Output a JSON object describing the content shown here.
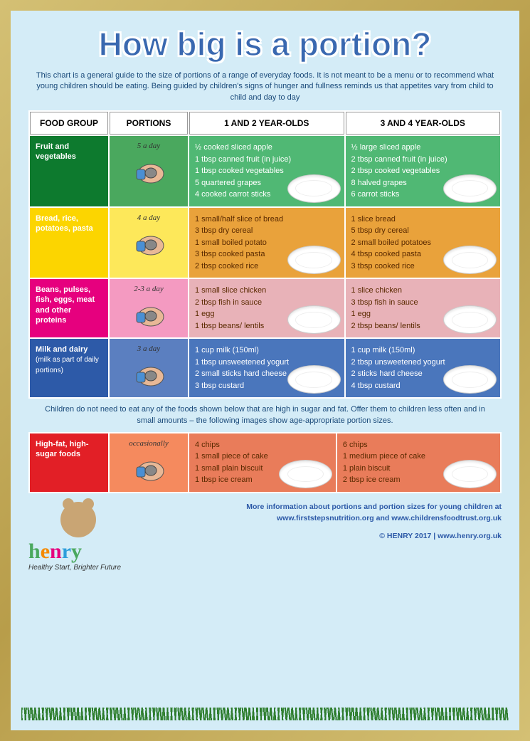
{
  "title": "How big is a portion?",
  "intro": "This chart is a general guide to the size of portions of a range of everyday foods. It is not meant to be a menu or to recommend what young children should be eating. Being guided by children's signs of hunger and fullness reminds us that appetites vary from child to child and day to day",
  "headers": [
    "FOOD GROUP",
    "PORTIONS",
    "1 AND 2 YEAR-OLDS",
    "3 AND 4 YEAR-OLDS"
  ],
  "rows": [
    {
      "cls": "r-fruit",
      "group": "Fruit and vegetables",
      "portion": "5 a day",
      "y12": [
        "½ cooked sliced apple",
        "1 tbsp canned fruit (in juice)",
        "1 tbsp cooked vegetables",
        "5 quartered grapes",
        "4 cooked carrot sticks"
      ],
      "y34": [
        "½ large sliced apple",
        "2 tbsp canned fruit (in juice)",
        "2 tbsp cooked vegetables",
        "8 halved grapes",
        "6 carrot sticks"
      ]
    },
    {
      "cls": "r-bread",
      "group": "Bread, rice, potatoes, pasta",
      "portion": "4 a day",
      "y12": [
        "1 small/half slice of bread",
        "3 tbsp dry cereal",
        "1 small boiled potato",
        "3 tbsp cooked pasta",
        "2 tbsp cooked rice"
      ],
      "y34": [
        "1 slice bread",
        "5 tbsp dry cereal",
        "2 small boiled potatoes",
        "4 tbsp cooked pasta",
        "3 tbsp cooked rice"
      ]
    },
    {
      "cls": "r-protein",
      "group": "Beans, pulses, fish, eggs, meat and other proteins",
      "portion": "2-3 a day",
      "y12": [
        "1 small slice chicken",
        "2 tbsp fish in sauce",
        "1 egg",
        "1 tbsp beans/ lentils"
      ],
      "y34": [
        "1 slice chicken",
        "3 tbsp fish in sauce",
        "1 egg",
        "2 tbsp beans/ lentils"
      ]
    },
    {
      "cls": "r-milk",
      "group": "Milk and dairy",
      "sub": "(milk as part of daily portions)",
      "portion": "3 a day",
      "y12": [
        "1 cup milk (150ml)",
        "1 tbsp unsweetened yogurt",
        "2 small sticks hard cheese",
        "3 tbsp custard"
      ],
      "y34": [
        "1 cup milk (150ml)",
        "2 tbsp unsweetened yogurt",
        "2 sticks hard cheese",
        "4 tbsp custard"
      ]
    }
  ],
  "midnote": "Children do not need to eat any of the foods shown below that are high in sugar and fat. Offer them to children less often and in small amounts – the following images show age-appropriate portion sizes.",
  "fatrow": {
    "cls": "r-fat",
    "group": "High-fat, high-sugar foods",
    "portion": "occasionally",
    "y12": [
      "4 chips",
      "1 small piece of cake",
      "1 small plain biscuit",
      "1 tbsp ice cream"
    ],
    "y34": [
      "6 chips",
      "1 medium piece of cake",
      "1 plain biscuit",
      "2 tbsp ice cream"
    ]
  },
  "footer": {
    "brand": "henry",
    "tagline": "Healthy Start, Brighter Future",
    "info1": "More information about portions and portion sizes for young children at",
    "info2": "www.firststepsnutrition.org and www.childrensfoodtrust.org.uk",
    "copy": "© HENRY 2017 | www.henry.org.uk"
  },
  "colors": {
    "title": "#3968b0",
    "bg": "#d4ecf7"
  }
}
